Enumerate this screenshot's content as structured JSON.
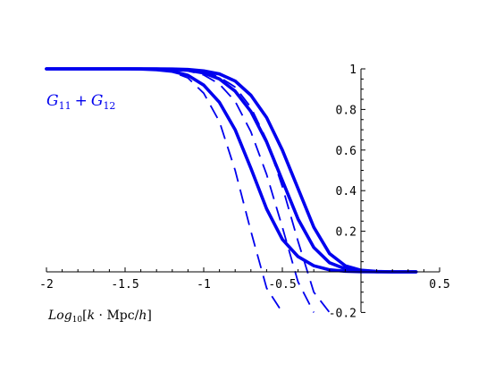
{
  "chart_data": {
    "type": "line",
    "title": "",
    "xlabel": "",
    "ylabel": "",
    "xlim": [
      -2,
      0.5
    ],
    "ylim": [
      -0.2,
      1
    ],
    "grid": false,
    "x_ticks": [
      -2,
      -1.5,
      -1,
      -0.5,
      0.5
    ],
    "x_tick_labels": [
      "-2",
      "-1.5",
      "-1",
      "-0.5",
      "0.5"
    ],
    "y_ticks": [
      -0.2,
      0.2,
      0.4,
      0.6,
      0.8,
      1
    ],
    "y_tick_labels": [
      "-0.2",
      "0.2",
      "0.4",
      "0.6",
      "0.8",
      "1"
    ],
    "annotation": {
      "symbol_1": "G",
      "sub_1": "11",
      "operator": "+",
      "symbol_2": "G",
      "sub_2": "12"
    },
    "x_axis_caption": {
      "prefix": "Log",
      "subscript": "10",
      "bracket_open": "[",
      "var_k": "k",
      "dot": " · Mpc/",
      "var_h": "h",
      "bracket_close": "]"
    },
    "colors": {
      "series": "#0000ee",
      "axis": "#000000"
    },
    "x": [
      -2.0,
      -1.8,
      -1.6,
      -1.5,
      -1.4,
      -1.3,
      -1.2,
      -1.1,
      -1.0,
      -0.9,
      -0.8,
      -0.7,
      -0.6,
      -0.5,
      -0.4,
      -0.3,
      -0.2,
      -0.1,
      0.0,
      0.1,
      0.2,
      0.3,
      0.35
    ],
    "series": [
      {
        "style": "solid",
        "values": [
          1.0,
          1.0,
          1.0,
          1.0,
          0.999,
          0.996,
          0.988,
          0.968,
          0.92,
          0.835,
          0.7,
          0.51,
          0.31,
          0.16,
          0.075,
          0.03,
          0.01,
          0.003,
          0.001,
          0.0,
          0.0,
          0.0,
          0.0
        ]
      },
      {
        "style": "solid",
        "values": [
          1.0,
          1.0,
          1.0,
          1.0,
          1.0,
          0.999,
          0.997,
          0.993,
          0.98,
          0.95,
          0.89,
          0.79,
          0.64,
          0.45,
          0.26,
          0.12,
          0.045,
          0.015,
          0.004,
          0.001,
          0.0,
          0.0,
          0.0
        ]
      },
      {
        "style": "solid",
        "values": [
          1.0,
          1.0,
          1.0,
          1.0,
          1.0,
          1.0,
          0.999,
          0.997,
          0.99,
          0.975,
          0.94,
          0.87,
          0.76,
          0.6,
          0.41,
          0.22,
          0.09,
          0.03,
          0.008,
          0.002,
          0.0,
          0.0,
          0.0
        ]
      },
      {
        "style": "dashed",
        "values": [
          1.0,
          1.0,
          1.0,
          1.0,
          0.999,
          0.995,
          0.985,
          0.955,
          0.88,
          0.74,
          0.5,
          0.2,
          -0.08,
          -0.2,
          null,
          null,
          null,
          null,
          null,
          null,
          null,
          null,
          null
        ]
      },
      {
        "style": "dashed",
        "values": [
          1.0,
          1.0,
          1.0,
          1.0,
          1.0,
          0.999,
          0.997,
          0.99,
          0.97,
          0.925,
          0.84,
          0.69,
          0.48,
          0.22,
          -0.05,
          -0.2,
          null,
          null,
          null,
          null,
          null,
          null,
          null
        ]
      },
      {
        "style": "dashed",
        "values": [
          1.0,
          1.0,
          1.0,
          1.0,
          1.0,
          1.0,
          0.999,
          0.996,
          0.985,
          0.96,
          0.91,
          0.81,
          0.65,
          0.42,
          0.15,
          -0.1,
          -0.2,
          null,
          null,
          null,
          null,
          null,
          null
        ]
      }
    ]
  }
}
